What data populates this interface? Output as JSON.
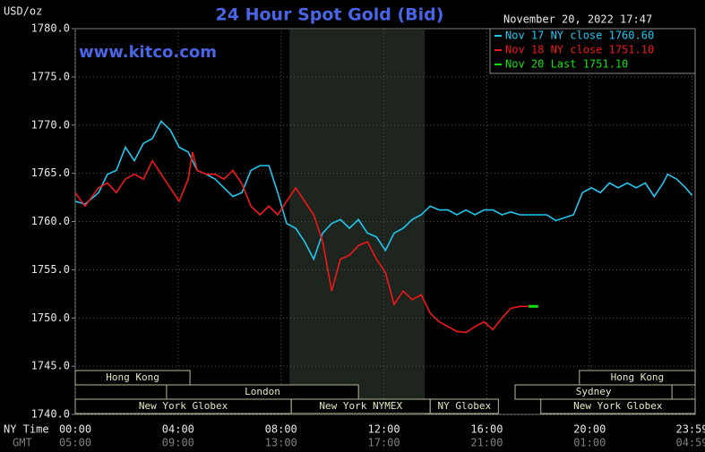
{
  "chart_data": {
    "type": "line",
    "title": "24 Hour Spot Gold (Bid)",
    "timestamp": "November 20, 2022 17:47",
    "y_label": "USD/oz",
    "watermark": "www.kitco.com",
    "x_row_labels": [
      "NY Time",
      "GMT"
    ],
    "xlim": [
      0,
      24.1
    ],
    "ylim": [
      1740,
      1780
    ],
    "yticks": [
      {
        "value": 1740,
        "label": "1740.0"
      },
      {
        "value": 1745,
        "label": "1745.0"
      },
      {
        "value": 1750,
        "label": "1750.0"
      },
      {
        "value": 1755,
        "label": "1755.0"
      },
      {
        "value": 1760,
        "label": "1760.0"
      },
      {
        "value": 1765,
        "label": "1765.0"
      },
      {
        "value": 1770,
        "label": "1770.0"
      },
      {
        "value": 1775,
        "label": "1775.0"
      },
      {
        "value": 1780,
        "label": "1780.0"
      }
    ],
    "xticks": [
      {
        "value": 0,
        "label": "00:00"
      },
      {
        "value": 4,
        "label": "04:00"
      },
      {
        "value": 8,
        "label": "08:00"
      },
      {
        "value": 12,
        "label": "12:00"
      },
      {
        "value": 16,
        "label": "16:00"
      },
      {
        "value": 20,
        "label": "20:00"
      },
      {
        "value": 23.98,
        "label": "23:59"
      }
    ],
    "gmt_labels": [
      "05:00",
      "09:00",
      "13:00",
      "17:00",
      "21:00",
      "01:00",
      "04:59"
    ],
    "grid": true,
    "highlight_range": [
      8.33,
      13.59
    ],
    "sessions": [
      [
        {
          "name": "Hong Kong",
          "start": 0,
          "end": 4.46
        },
        {
          "name": "Hong Kong",
          "start": 19.6,
          "end": 24.1
        }
      ],
      [
        {
          "name": "London",
          "start": 3.55,
          "end": 11.01
        },
        {
          "name": "Sydney",
          "start": 17.1,
          "end": 23.2
        }
      ],
      [
        {
          "name": "New York Globex",
          "start": 0,
          "end": 8.4
        },
        {
          "name": "New York NYMEX",
          "start": 8.4,
          "end": 13.8
        },
        {
          "name": "NY Globex",
          "start": 13.8,
          "end": 16.45
        },
        {
          "name": "New York Globex",
          "start": 18.1,
          "end": 24.1
        }
      ]
    ],
    "series": [
      {
        "name": "Nov 17 NY close 1760.60",
        "color": "#1ec8f0",
        "x": [
          0,
          0.38,
          0.91,
          1.25,
          1.6,
          1.95,
          2.3,
          2.65,
          3.0,
          3.34,
          3.69,
          4.04,
          4.39,
          4.74,
          5.09,
          5.44,
          5.78,
          6.13,
          6.48,
          6.83,
          7.18,
          7.53,
          7.87,
          8.22,
          8.57,
          8.92,
          9.27,
          9.62,
          9.97,
          10.31,
          10.66,
          11.01,
          11.36,
          11.71,
          12.06,
          12.4,
          12.75,
          13.1,
          13.45,
          13.8,
          14.15,
          14.49,
          14.84,
          15.19,
          15.54,
          15.89,
          16.24,
          16.59,
          16.93,
          17.28,
          17.98,
          18.33,
          18.68,
          19.02,
          19.37,
          19.72,
          20.07,
          20.42,
          20.77,
          21.11,
          21.46,
          21.81,
          22.16,
          22.51,
          22.86,
          23.03,
          23.38,
          23.73,
          23.98
        ],
        "values": [
          1762.1,
          1761.8,
          1763.0,
          1764.9,
          1765.3,
          1767.7,
          1766.3,
          1768.1,
          1768.6,
          1770.4,
          1769.5,
          1767.7,
          1767.2,
          1765.3,
          1764.9,
          1764.4,
          1763.5,
          1762.6,
          1763.0,
          1765.3,
          1765.8,
          1765.8,
          1763.0,
          1759.8,
          1759.3,
          1757.9,
          1756.1,
          1758.8,
          1759.8,
          1760.2,
          1759.3,
          1760.2,
          1758.8,
          1758.4,
          1757.0,
          1758.8,
          1759.3,
          1760.2,
          1760.7,
          1761.6,
          1761.2,
          1761.2,
          1760.7,
          1761.2,
          1760.7,
          1761.2,
          1761.2,
          1760.7,
          1761.0,
          1760.7,
          1760.7,
          1760.7,
          1760.1,
          1760.4,
          1760.7,
          1763.0,
          1763.5,
          1763.0,
          1764.0,
          1763.5,
          1764.0,
          1763.5,
          1764.0,
          1762.6,
          1764.0,
          1764.9,
          1764.4,
          1763.5,
          1762.7
        ]
      },
      {
        "name": "Nov 18 NY close 1751.10",
        "color": "#f01818",
        "x": [
          0,
          0.38,
          0.91,
          1.25,
          1.6,
          1.95,
          2.3,
          2.65,
          3.0,
          3.34,
          3.69,
          4.04,
          4.39,
          4.56,
          4.74,
          5.09,
          5.44,
          5.78,
          6.13,
          6.48,
          6.83,
          7.18,
          7.53,
          7.87,
          8.22,
          8.57,
          8.92,
          9.27,
          9.62,
          9.97,
          10.31,
          10.66,
          11.01,
          11.36,
          11.71,
          12.06,
          12.4,
          12.75,
          13.1,
          13.45,
          13.8,
          14.15,
          14.49,
          14.84,
          15.19,
          15.54,
          15.89,
          16.24,
          16.59,
          16.93,
          17.28,
          17.63
        ],
        "values": [
          1763.0,
          1761.6,
          1763.5,
          1764.0,
          1763.0,
          1764.4,
          1764.9,
          1764.4,
          1766.3,
          1764.9,
          1763.5,
          1762.1,
          1764.4,
          1767.2,
          1765.3,
          1764.9,
          1764.9,
          1764.4,
          1765.3,
          1763.9,
          1761.6,
          1760.7,
          1761.6,
          1760.7,
          1762.1,
          1763.5,
          1762.1,
          1760.7,
          1757.9,
          1752.8,
          1756.1,
          1756.5,
          1757.5,
          1757.9,
          1756.1,
          1754.7,
          1751.4,
          1752.8,
          1751.9,
          1752.4,
          1750.5,
          1749.6,
          1749.1,
          1748.6,
          1748.5,
          1749.1,
          1749.6,
          1748.8,
          1750.0,
          1751.0,
          1751.2,
          1751.2
        ]
      },
      {
        "name": "Nov 20 Last 1751.10",
        "color": "#10e010",
        "x": [
          17.63,
          18.0
        ],
        "values": [
          1751.2,
          1751.2
        ]
      }
    ]
  }
}
